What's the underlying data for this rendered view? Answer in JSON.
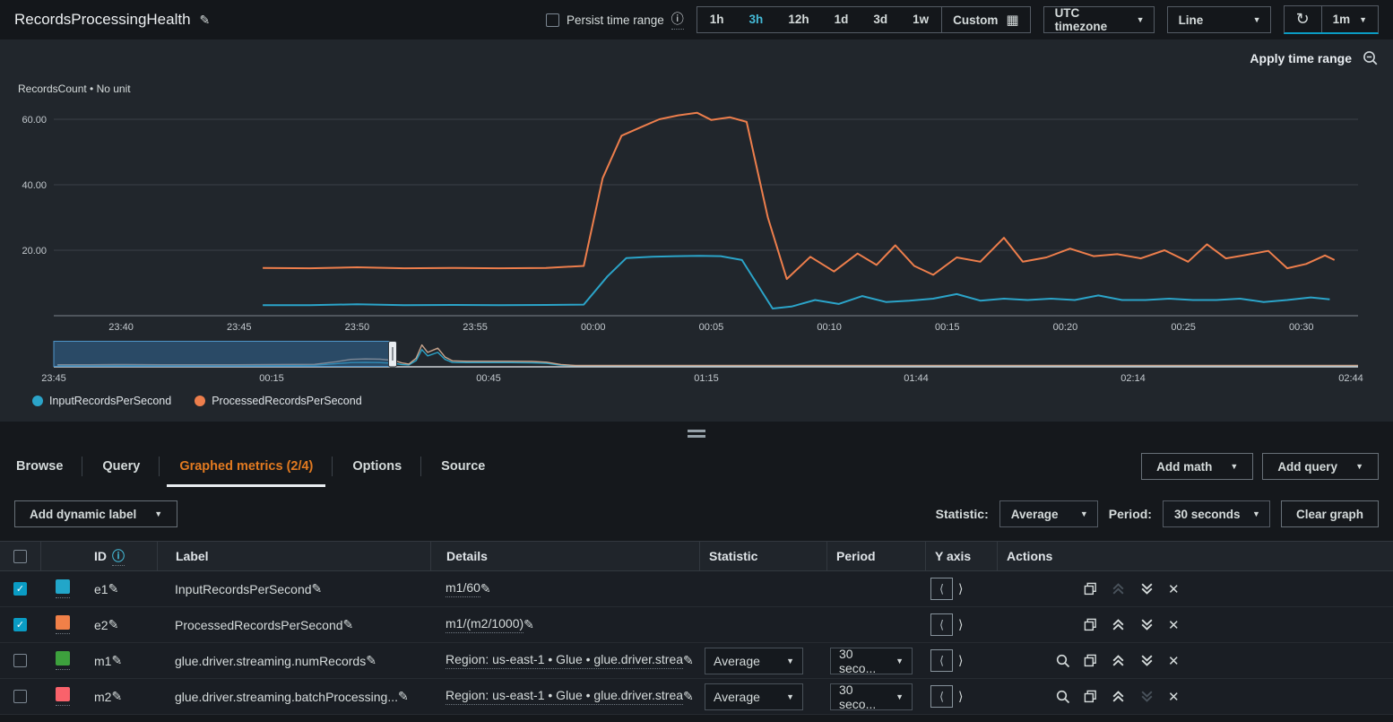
{
  "icons": {
    "edit": "✎",
    "info": "ⓘ",
    "caret_down": "▼",
    "calendar": "▦",
    "refresh": "↻",
    "check": "✓",
    "close": "✕",
    "langle": "⟨",
    "rangle": "⟩"
  },
  "header": {
    "title": "RecordsProcessingHealth",
    "persist_label": "Persist time range",
    "ranges": [
      "1h",
      "3h",
      "12h",
      "1d",
      "3d",
      "1w"
    ],
    "selected_range": "3h",
    "custom_label": "Custom",
    "timezone": "UTC timezone",
    "chart_type": "Line",
    "refresh_interval": "1m"
  },
  "chart": {
    "apply_time_range": "Apply time range",
    "unit_label": "RecordsCount • No unit",
    "legend": [
      {
        "label": "InputRecordsPerSecond",
        "color": "#2ba4c9"
      },
      {
        "label": "ProcessedRecordsPerSecond",
        "color": "#ed7e4c"
      }
    ]
  },
  "chart_data": {
    "type": "line",
    "title": "RecordsProcessingHealth",
    "ylabel": "RecordsCount • No unit",
    "x_unit": "minutes since 23:40 UTC",
    "xlim": [
      -2.85,
      52.4
    ],
    "ylim": [
      0,
      65
    ],
    "grid": true,
    "y_ticks": [
      20,
      40,
      60
    ],
    "y_tick_labels": [
      "20.00",
      "40.00",
      "60.00"
    ],
    "x_ticks": [
      0,
      5,
      10,
      15,
      20,
      25,
      30,
      35,
      40,
      45,
      50
    ],
    "x_tick_labels": [
      "23:40",
      "23:45",
      "23:50",
      "23:55",
      "00:00",
      "00:05",
      "00:10",
      "00:15",
      "00:20",
      "00:25",
      "00:30"
    ],
    "series": [
      {
        "name": "InputRecordsPerSecond",
        "color": "#2ba4c9",
        "points": [
          [
            6,
            3.2
          ],
          [
            8,
            3.2
          ],
          [
            10,
            3.5
          ],
          [
            12,
            3.2
          ],
          [
            14,
            3.3
          ],
          [
            16,
            3.2
          ],
          [
            18,
            3.3
          ],
          [
            19.6,
            3.4
          ],
          [
            20.6,
            12
          ],
          [
            21.4,
            17.6
          ],
          [
            22.5,
            18
          ],
          [
            23.5,
            18.2
          ],
          [
            24.5,
            18.3
          ],
          [
            25.4,
            18.2
          ],
          [
            26.3,
            17
          ],
          [
            27.6,
            2.2
          ],
          [
            28.4,
            2.8
          ],
          [
            29.4,
            4.8
          ],
          [
            30.4,
            3.6
          ],
          [
            31.4,
            6
          ],
          [
            32.4,
            4.2
          ],
          [
            33.4,
            4.6
          ],
          [
            34.4,
            5.2
          ],
          [
            35.4,
            6.6
          ],
          [
            36.4,
            4.6
          ],
          [
            37.4,
            5.2
          ],
          [
            38.4,
            4.8
          ],
          [
            39.4,
            5.2
          ],
          [
            40.4,
            4.8
          ],
          [
            41.4,
            6.2
          ],
          [
            42.4,
            4.8
          ],
          [
            43.4,
            4.8
          ],
          [
            44.4,
            5.2
          ],
          [
            45.4,
            4.8
          ],
          [
            46.4,
            4.8
          ],
          [
            47.4,
            5.2
          ],
          [
            48.4,
            4.2
          ],
          [
            49.4,
            4.8
          ],
          [
            50.4,
            5.6
          ],
          [
            51.2,
            5
          ]
        ]
      },
      {
        "name": "ProcessedRecordsPerSecond",
        "color": "#ed7e4c",
        "points": [
          [
            6,
            14.6
          ],
          [
            8,
            14.5
          ],
          [
            10,
            14.8
          ],
          [
            12,
            14.5
          ],
          [
            14,
            14.6
          ],
          [
            16,
            14.5
          ],
          [
            18,
            14.6
          ],
          [
            19.6,
            15.2
          ],
          [
            20.4,
            42
          ],
          [
            21.2,
            55
          ],
          [
            22,
            57.5
          ],
          [
            22.8,
            60
          ],
          [
            23.6,
            61.2
          ],
          [
            24.4,
            62
          ],
          [
            25,
            59.8
          ],
          [
            25.8,
            60.6
          ],
          [
            26.5,
            59.2
          ],
          [
            27.4,
            30
          ],
          [
            28.2,
            11.2
          ],
          [
            29.2,
            18
          ],
          [
            30.2,
            13.5
          ],
          [
            31.2,
            19
          ],
          [
            32,
            15.5
          ],
          [
            32.8,
            21.5
          ],
          [
            33.6,
            15.2
          ],
          [
            34.4,
            12.5
          ],
          [
            35.4,
            17.8
          ],
          [
            36.4,
            16.5
          ],
          [
            37.4,
            23.8
          ],
          [
            38.2,
            16.5
          ],
          [
            39.2,
            17.8
          ],
          [
            40.2,
            20.5
          ],
          [
            41.2,
            18.2
          ],
          [
            42.2,
            18.8
          ],
          [
            43.2,
            17.5
          ],
          [
            44.2,
            20
          ],
          [
            45.2,
            16.5
          ],
          [
            46,
            21.8
          ],
          [
            46.8,
            17.5
          ],
          [
            47.6,
            18.5
          ],
          [
            48.6,
            19.8
          ],
          [
            49.4,
            14.5
          ],
          [
            50.2,
            15.8
          ],
          [
            51,
            18.4
          ],
          [
            51.4,
            17
          ]
        ]
      }
    ],
    "overview": {
      "xlim": [
        0,
        180
      ],
      "x_unit": "minutes since 23:45 UTC",
      "x_ticks": [
        0,
        30,
        60,
        90,
        119,
        149,
        179
      ],
      "x_tick_labels": [
        "23:45",
        "00:15",
        "00:45",
        "01:15",
        "01:44",
        "02:14",
        "02:44"
      ],
      "brush": [
        0,
        46.7
      ],
      "series": [
        {
          "name": "InputRecordsPerSecond",
          "color": "#2ba4c9",
          "points": [
            [
              0.5,
              4
            ],
            [
              5,
              4
            ],
            [
              10,
              4
            ],
            [
              15,
              4
            ],
            [
              20,
              4
            ],
            [
              25,
              4
            ],
            [
              30,
              4
            ],
            [
              36,
              5
            ],
            [
              39,
              12
            ],
            [
              41,
              16
            ],
            [
              43,
              17
            ],
            [
              45,
              16
            ],
            [
              47,
              13
            ],
            [
              48,
              8
            ],
            [
              49,
              6
            ],
            [
              50,
              25
            ],
            [
              50.8,
              72
            ],
            [
              51.6,
              45
            ],
            [
              53,
              60
            ],
            [
              54,
              30
            ],
            [
              55,
              17
            ],
            [
              57,
              16
            ],
            [
              60,
              16
            ],
            [
              63,
              16
            ],
            [
              66,
              15
            ],
            [
              68,
              13
            ],
            [
              70,
              5
            ],
            [
              72,
              2
            ],
            [
              75,
              2
            ],
            [
              80,
              2
            ],
            [
              90,
              2
            ],
            [
              100,
              2
            ],
            [
              110,
              2
            ],
            [
              120,
              2
            ],
            [
              130,
              2
            ],
            [
              140,
              2
            ],
            [
              150,
              2
            ],
            [
              160,
              2
            ],
            [
              170,
              2
            ],
            [
              180,
              2
            ]
          ]
        },
        {
          "name": "ProcessedRecordsPerSecond",
          "color": "#c9a58e",
          "points": [
            [
              0.5,
              7
            ],
            [
              5,
              7
            ],
            [
              10,
              8
            ],
            [
              15,
              7
            ],
            [
              20,
              7
            ],
            [
              25,
              7
            ],
            [
              30,
              8
            ],
            [
              36,
              9
            ],
            [
              39,
              20
            ],
            [
              41,
              30
            ],
            [
              43,
              32
            ],
            [
              45,
              31
            ],
            [
              47,
              25
            ],
            [
              48,
              15
            ],
            [
              49,
              10
            ],
            [
              50,
              35
            ],
            [
              50.8,
              92
            ],
            [
              51.6,
              60
            ],
            [
              53,
              78
            ],
            [
              54,
              40
            ],
            [
              55,
              24
            ],
            [
              57,
              22
            ],
            [
              60,
              22
            ],
            [
              63,
              22
            ],
            [
              66,
              21
            ],
            [
              68,
              18
            ],
            [
              70,
              8
            ],
            [
              72,
              4
            ],
            [
              75,
              4
            ],
            [
              80,
              4
            ],
            [
              90,
              4
            ],
            [
              100,
              4
            ],
            [
              110,
              4
            ],
            [
              120,
              4
            ],
            [
              130,
              4
            ],
            [
              140,
              4
            ],
            [
              150,
              4
            ],
            [
              160,
              4
            ],
            [
              170,
              4
            ],
            [
              180,
              4
            ]
          ]
        }
      ]
    }
  },
  "tabs": [
    {
      "label": "Browse",
      "active": false
    },
    {
      "label": "Query",
      "active": false
    },
    {
      "label": "Graphed metrics (2/4)",
      "active": true
    },
    {
      "label": "Options",
      "active": false
    },
    {
      "label": "Source",
      "active": false
    }
  ],
  "toolbar": {
    "add_math": "Add math",
    "add_query": "Add query",
    "add_dynamic_label": "Add dynamic label",
    "statistic_label": "Statistic:",
    "statistic_value": "Average",
    "period_label": "Period:",
    "period_value": "30 seconds",
    "clear_graph": "Clear graph"
  },
  "table": {
    "columns": [
      "ID",
      "Label",
      "Details",
      "Statistic",
      "Period",
      "Y axis",
      "Actions"
    ],
    "rows": [
      {
        "checked": true,
        "color": "#22a6c9",
        "id": "e1",
        "label": "InputRecordsPerSecond",
        "details": "m1/60",
        "statistic": "",
        "period": "",
        "has_search": false,
        "up_disabled": true,
        "down_disabled": false
      },
      {
        "checked": true,
        "color": "#f08048",
        "id": "e2",
        "label": "ProcessedRecordsPerSecond",
        "details": "m1/(m2/1000)",
        "statistic": "",
        "period": "",
        "has_search": false,
        "up_disabled": false,
        "down_disabled": false
      },
      {
        "checked": false,
        "color": "#3da13d",
        "id": "m1",
        "label": "glue.driver.streaming.numRecords",
        "details": "Region: us-east-1 • Glue • glue.driver.strea",
        "statistic": "Average",
        "period": "30 seco...",
        "has_search": true,
        "up_disabled": false,
        "down_disabled": false
      },
      {
        "checked": false,
        "color": "#f9626b",
        "id": "m2",
        "label": "glue.driver.streaming.batchProcessing...",
        "details": "Region: us-east-1 • Glue • glue.driver.strea",
        "statistic": "Average",
        "period": "30 seco...",
        "has_search": true,
        "up_disabled": false,
        "down_disabled": true
      }
    ]
  }
}
